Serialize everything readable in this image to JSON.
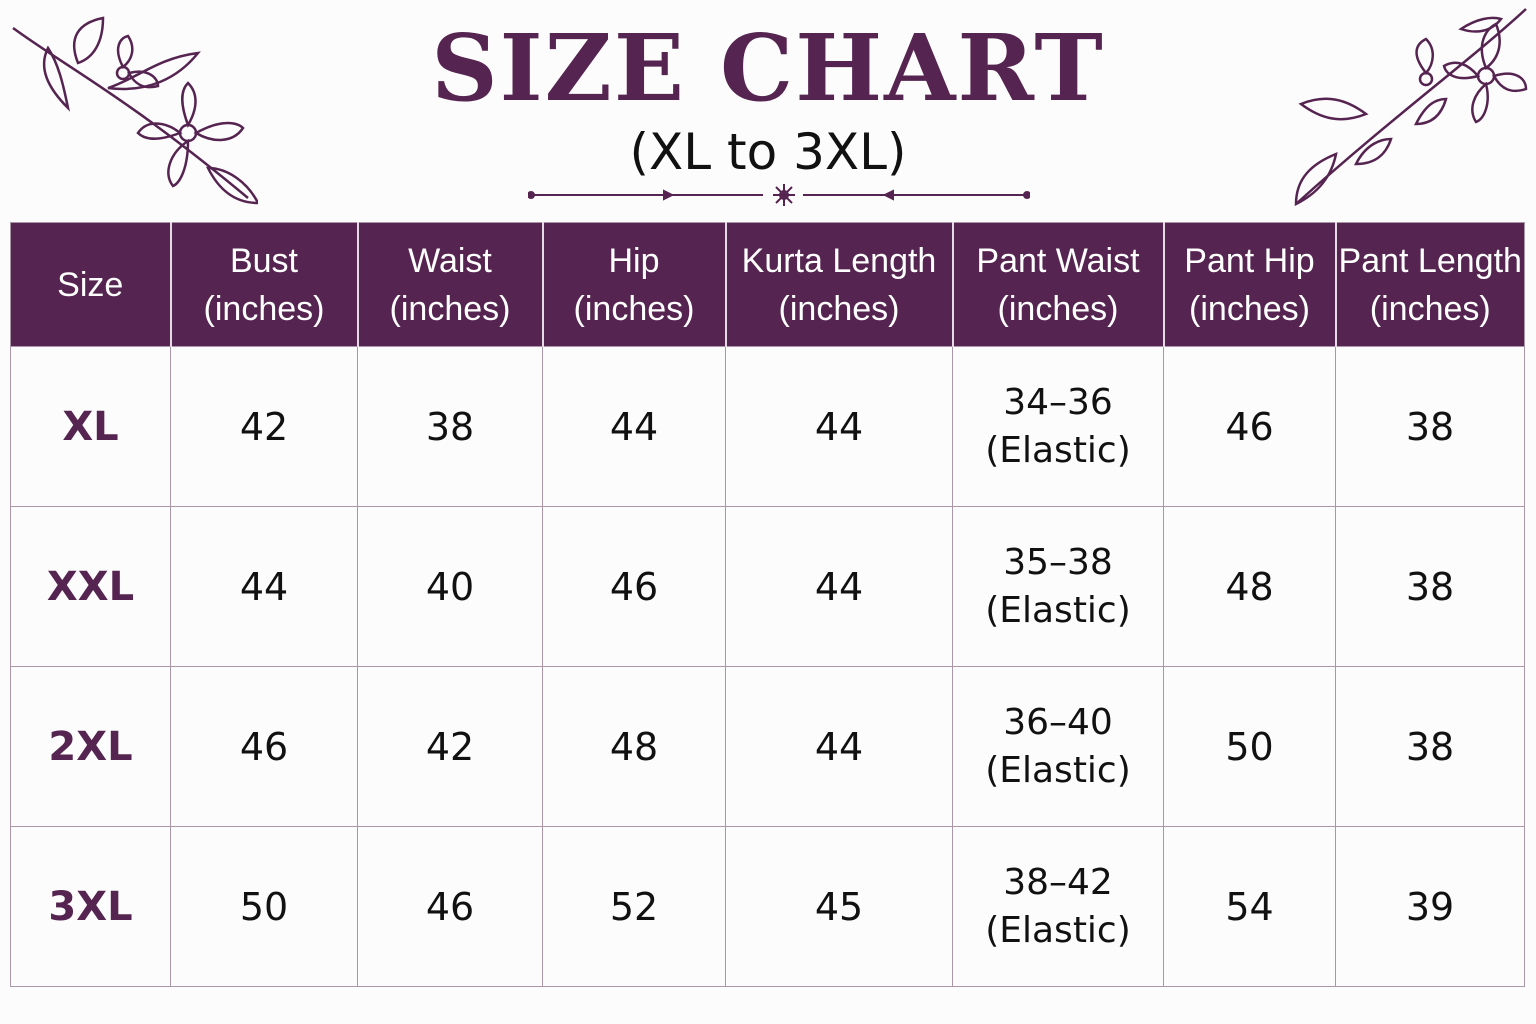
{
  "title": "SIZE CHART",
  "subtitle": "(XL to 3XL)",
  "accent_color": "#552450",
  "decorations": [
    "floral-branch-top-left",
    "floral-branch-top-right",
    "ornamental-divider"
  ],
  "table": {
    "headers": [
      {
        "line1": "Size",
        "line2": ""
      },
      {
        "line1": "Bust",
        "line2": "(inches)"
      },
      {
        "line1": "Waist",
        "line2": "(inches)"
      },
      {
        "line1": "Hip",
        "line2": "(inches)"
      },
      {
        "line1": "Kurta Length",
        "line2": "(inches)"
      },
      {
        "line1": "Pant Waist",
        "line2": "(inches)"
      },
      {
        "line1": "Pant Hip",
        "line2": "(inches)"
      },
      {
        "line1": "Pant Length",
        "line2": "(inches)"
      }
    ],
    "rows": [
      {
        "size": "XL",
        "bust": "42",
        "waist": "38",
        "hip": "44",
        "kurta_length": "44",
        "pant_waist": "34–36",
        "pant_waist_note": "(Elastic)",
        "pant_hip": "46",
        "pant_length": "38"
      },
      {
        "size": "XXL",
        "bust": "44",
        "waist": "40",
        "hip": "46",
        "kurta_length": "44",
        "pant_waist": "35–38",
        "pant_waist_note": "(Elastic)",
        "pant_hip": "48",
        "pant_length": "38"
      },
      {
        "size": "2XL",
        "bust": "46",
        "waist": "42",
        "hip": "48",
        "kurta_length": "44",
        "pant_waist": "36–40",
        "pant_waist_note": "(Elastic)",
        "pant_hip": "50",
        "pant_length": "38"
      },
      {
        "size": "3XL",
        "bust": "50",
        "waist": "46",
        "hip": "52",
        "kurta_length": "45",
        "pant_waist": "38–42",
        "pant_waist_note": "(Elastic)",
        "pant_hip": "54",
        "pant_length": "39"
      }
    ]
  }
}
